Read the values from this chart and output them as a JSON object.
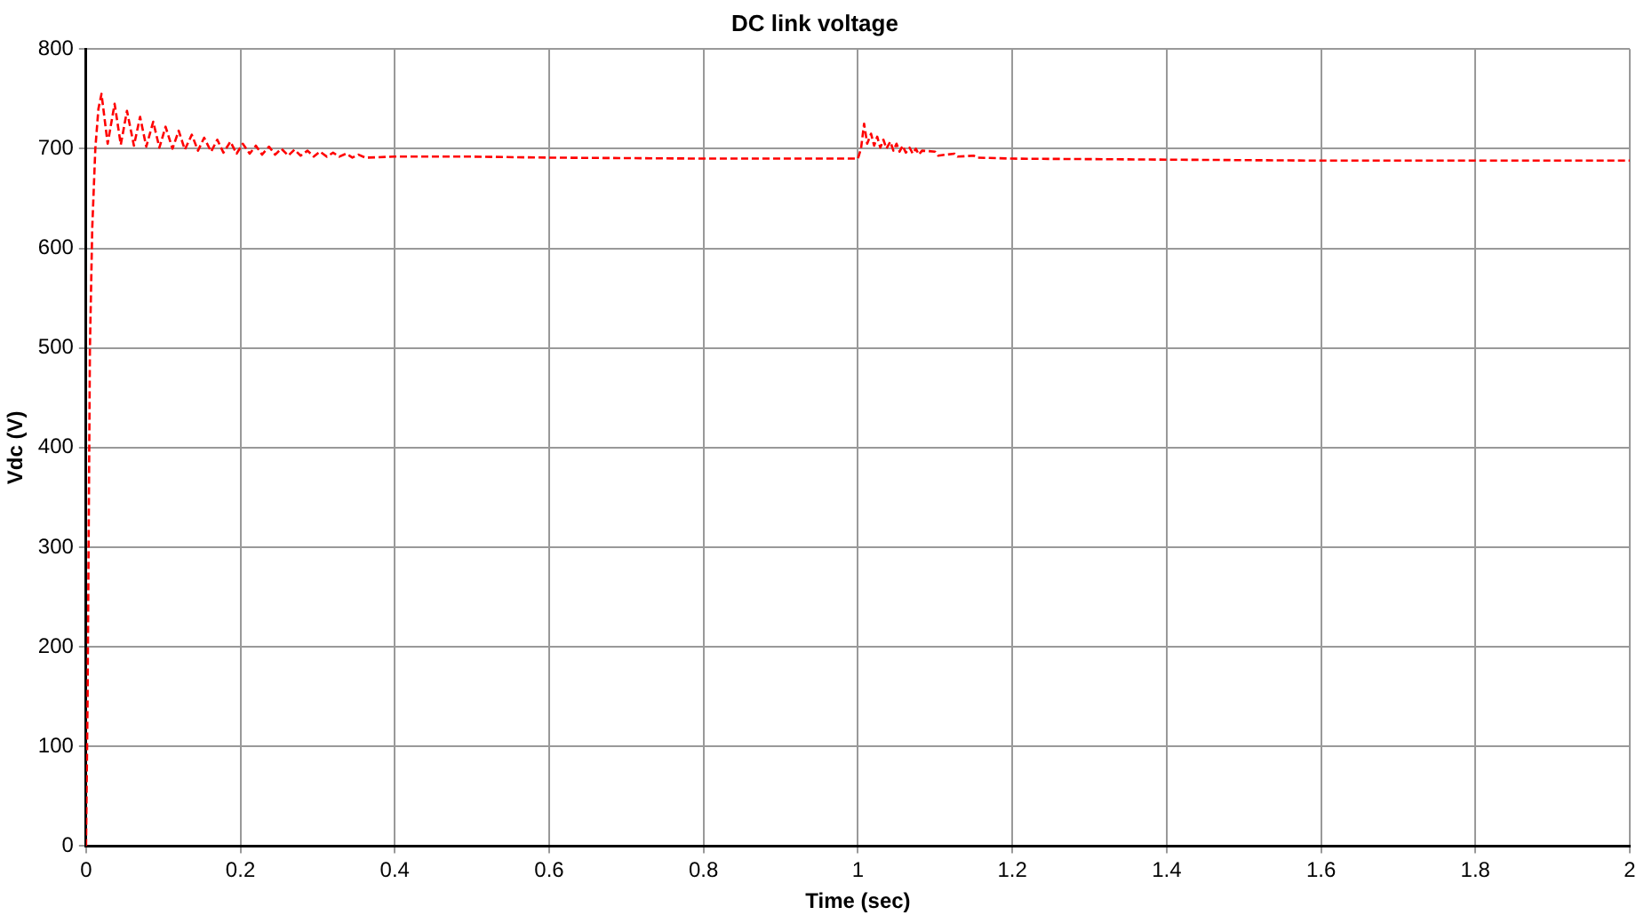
{
  "chart_data": {
    "type": "line",
    "title": "DC link voltage",
    "xlabel": "Time (sec)",
    "ylabel": "Vdc (V)",
    "xlim": [
      0,
      2
    ],
    "xticks": [
      0,
      0.2,
      0.4,
      0.6,
      0.8,
      1,
      1.2,
      1.4,
      1.6,
      1.8,
      2
    ],
    "ylim": [
      0,
      800
    ],
    "yticks": [
      0,
      100,
      200,
      300,
      400,
      500,
      600,
      700,
      800
    ],
    "grid": true,
    "legend": false,
    "marker": "none",
    "line_style": "dashed",
    "series": [
      {
        "color": "#ff0000",
        "x": [
          0,
          0.002,
          0.005,
          0.008,
          0.012,
          0.016,
          0.02,
          0.028,
          0.037,
          0.045,
          0.053,
          0.062,
          0.07,
          0.078,
          0.087,
          0.095,
          0.103,
          0.112,
          0.12,
          0.128,
          0.137,
          0.145,
          0.153,
          0.162,
          0.17,
          0.178,
          0.187,
          0.195,
          0.203,
          0.212,
          0.22,
          0.228,
          0.237,
          0.245,
          0.253,
          0.262,
          0.27,
          0.278,
          0.287,
          0.295,
          0.303,
          0.312,
          0.32,
          0.328,
          0.337,
          0.345,
          0.353,
          0.362,
          0.4,
          0.5,
          0.6,
          0.8,
          0.99,
          1.0,
          1.004,
          1.008,
          1.012,
          1.017,
          1.021,
          1.025,
          1.029,
          1.033,
          1.037,
          1.042,
          1.046,
          1.05,
          1.054,
          1.058,
          1.062,
          1.067,
          1.071,
          1.075,
          1.079,
          1.083,
          1.1,
          1.104,
          1.125,
          1.129,
          1.15,
          1.154,
          1.2,
          1.4,
          1.6,
          2.0
        ],
        "values": [
          0,
          150,
          500,
          620,
          700,
          740,
          755,
          705,
          745,
          704,
          738,
          703,
          732,
          702,
          727,
          701,
          722,
          700,
          718,
          699,
          714,
          698,
          711,
          697,
          709,
          696,
          707,
          695,
          705,
          695,
          703,
          694,
          702,
          694,
          700,
          693,
          699,
          693,
          698,
          692,
          697,
          692,
          696,
          692,
          695,
          691,
          694,
          691,
          692,
          692,
          691,
          690,
          690,
          690,
          700,
          725,
          705,
          715,
          703,
          712,
          701,
          709,
          700,
          707,
          698,
          705,
          697,
          703,
          696,
          701,
          695,
          700,
          694,
          698,
          697,
          693,
          695,
          692,
          693,
          691,
          690,
          689,
          688,
          688
        ]
      }
    ]
  }
}
